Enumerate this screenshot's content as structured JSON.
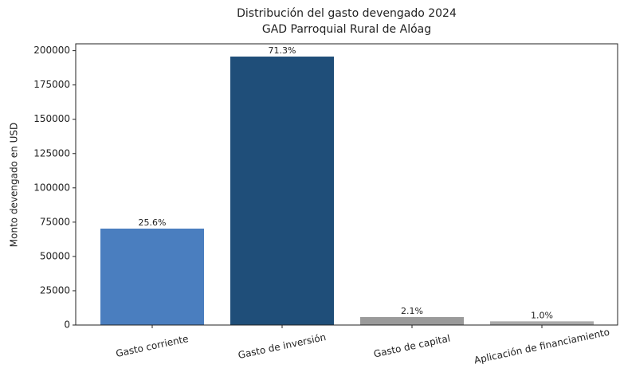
{
  "chart_data": {
    "type": "bar",
    "title": "Distribución del gasto devengado 2024",
    "subtitle": "GAD Parroquial Rural de Alóag",
    "y_label": "Monto devengado en USD",
    "categories": [
      "Gasto corriente",
      "Gasto de inversión",
      "Gasto de capital",
      "Aplicación de financiamiento"
    ],
    "values": [
      70300,
      195700,
      5800,
      2700
    ],
    "shares": [
      25.6,
      71.3,
      2.1,
      1.0
    ],
    "share_labels": [
      "25.6%",
      "71.3%",
      "2.1%",
      "1.0%"
    ],
    "colors": [
      "#4a7ebf",
      "#1f4e79",
      "#9a9a9a",
      "#a9a9a9"
    ],
    "ylim": [
      0,
      205000
    ],
    "yticks": [
      0,
      25000,
      50000,
      75000,
      100000,
      125000,
      150000,
      175000,
      200000
    ],
    "grid": false
  }
}
